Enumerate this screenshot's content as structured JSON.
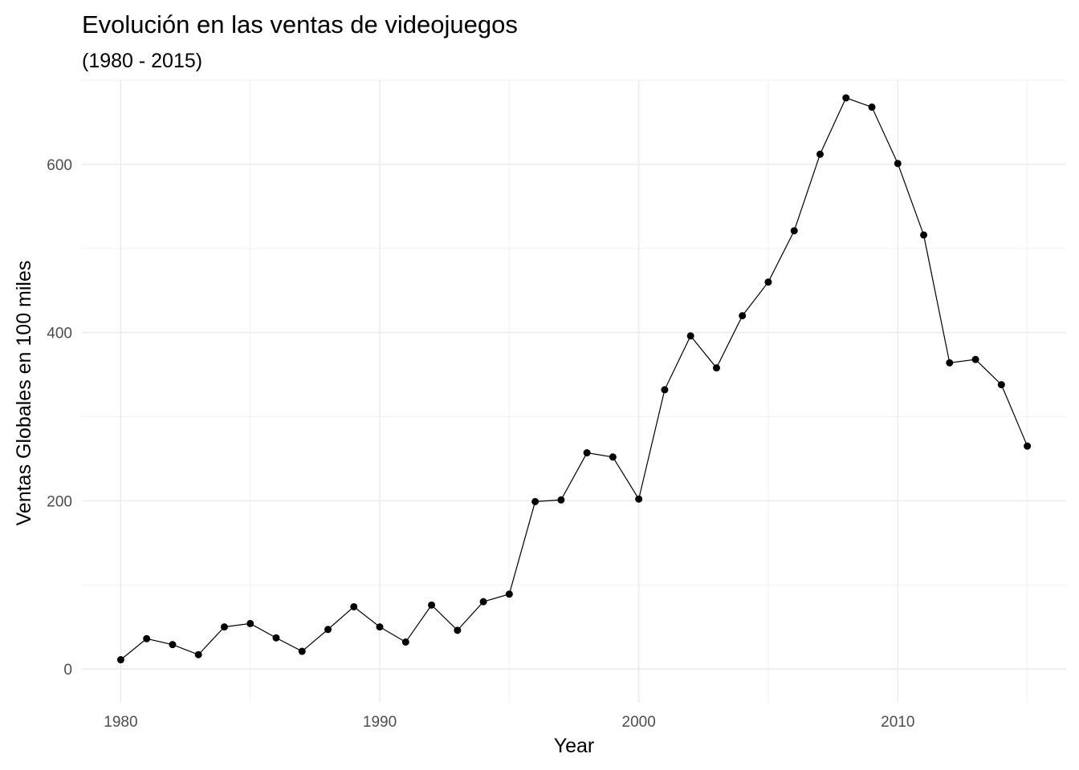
{
  "chart_data": {
    "type": "line",
    "title": "Evolución en las ventas de videojuegos",
    "subtitle": "(1980 - 2015)",
    "xlabel": "Year",
    "ylabel": "Ventas Globales en 100 miles",
    "xlim": [
      1978.5,
      2016.5
    ],
    "ylim": [
      -40,
      700
    ],
    "x_ticks": [
      1980,
      1990,
      2000,
      2010
    ],
    "y_ticks": [
      0,
      200,
      400,
      600
    ],
    "x_minor_ticks": [
      1985,
      1995,
      2005,
      2015
    ],
    "y_minor_ticks": [
      100,
      300,
      500,
      700
    ],
    "grid": true,
    "legend": "none",
    "points_shown": true,
    "color": "#000000",
    "x": [
      1980,
      1981,
      1982,
      1983,
      1984,
      1985,
      1986,
      1987,
      1988,
      1989,
      1990,
      1991,
      1992,
      1993,
      1994,
      1995,
      1996,
      1997,
      1998,
      1999,
      2000,
      2001,
      2002,
      2003,
      2004,
      2005,
      2006,
      2007,
      2008,
      2009,
      2010,
      2011,
      2012,
      2013,
      2014,
      2015
    ],
    "y": [
      11,
      36,
      29,
      17,
      50,
      54,
      37,
      21,
      47,
      74,
      50,
      32,
      76,
      46,
      80,
      89,
      199,
      201,
      257,
      252,
      202,
      332,
      396,
      358,
      420,
      460,
      521,
      612,
      679,
      668,
      601,
      516,
      364,
      368,
      338,
      265
    ]
  }
}
